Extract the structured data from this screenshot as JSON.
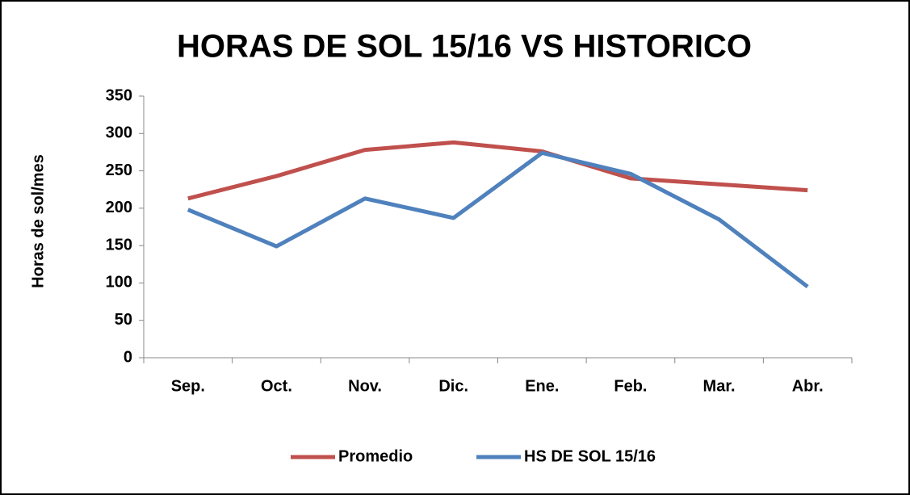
{
  "chart_data": {
    "type": "line",
    "title": "HORAS DE SOL 15/16 VS HISTORICO",
    "y_label": "Horas de sol/mes",
    "categories": [
      "Sep.",
      "Oct.",
      "Nov.",
      "Dic.",
      "Ene.",
      "Feb.",
      "Mar.",
      "Abr."
    ],
    "series": [
      {
        "name": "Promedio",
        "color": "#c0504d",
        "values": [
          213,
          243,
          278,
          288,
          276,
          240,
          232,
          224
        ]
      },
      {
        "name": "HS DE SOL 15/16",
        "color": "#4f81bd",
        "values": [
          198,
          149,
          213,
          187,
          274,
          246,
          185,
          95
        ]
      }
    ],
    "ylim": [
      0,
      350
    ],
    "yticks": [
      0,
      50,
      100,
      150,
      200,
      250,
      300,
      350
    ],
    "grid": false,
    "legend": "bottom"
  }
}
